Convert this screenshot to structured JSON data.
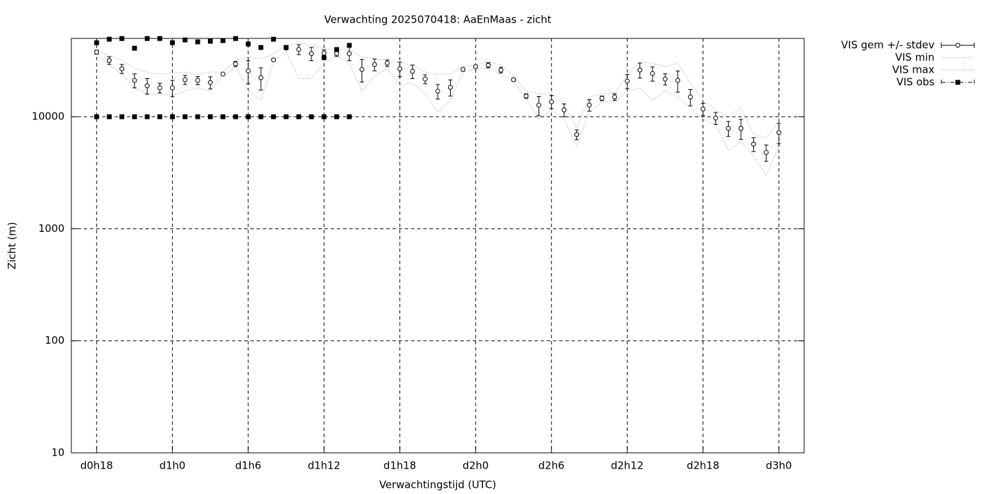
{
  "chart_data": {
    "type": "errorline",
    "title": "Verwachting 2025070418: AaEnMaas - zicht",
    "xlabel": "Verwachtingstijd (UTC)",
    "ylabel": "Zicht (m)",
    "log_y": true,
    "grid": true,
    "xlim": [
      16,
      74
    ],
    "xticks": [
      {
        "value": 18,
        "label": "d0h18"
      },
      {
        "value": 24,
        "label": "d1h0"
      },
      {
        "value": 30,
        "label": "d1h6"
      },
      {
        "value": 36,
        "label": "d1h12"
      },
      {
        "value": 42,
        "label": "d1h18"
      },
      {
        "value": 48,
        "label": "d2h0"
      },
      {
        "value": 54,
        "label": "d2h6"
      },
      {
        "value": 60,
        "label": "d2h12"
      },
      {
        "value": 66,
        "label": "d2h18"
      },
      {
        "value": 72,
        "label": "d3h0"
      }
    ],
    "ylim": [
      10,
      50000
    ],
    "yticks": [
      10,
      100,
      1000,
      10000
    ],
    "x": [
      18,
      19,
      20,
      21,
      22,
      23,
      24,
      25,
      26,
      27,
      28,
      29,
      30,
      31,
      32,
      33,
      34,
      35,
      36,
      37,
      38,
      39,
      40,
      41,
      42,
      43,
      44,
      45,
      46,
      47,
      48,
      49,
      50,
      51,
      52,
      53,
      54,
      55,
      56,
      57,
      58,
      59,
      60,
      61,
      62,
      63,
      64,
      65,
      66,
      67,
      68,
      69,
      70,
      71,
      72
    ],
    "series": [
      {
        "name": "VIS gem +/- stdev",
        "color": "#000000",
        "values": [
          37700,
          31800,
          26800,
          21100,
          18900,
          18100,
          18100,
          21400,
          21100,
          20200,
          24000,
          29600,
          25700,
          22300,
          32200,
          41000,
          39800,
          36600,
          37000,
          36600,
          36600,
          26400,
          29200,
          30100,
          26800,
          25400,
          21700,
          16900,
          18300,
          26400,
          28000,
          28800,
          26100,
          21400,
          15300,
          12700,
          13600,
          11500,
          6930,
          12700,
          14600,
          15000,
          20800,
          26100,
          24300,
          21700,
          21100,
          15000,
          11700,
          9730,
          7870,
          7870,
          5690,
          4800,
          7230
        ],
        "errors": [
          1500,
          2500,
          2500,
          3000,
          3000,
          1800,
          3000,
          2000,
          1800,
          2500,
          500,
          1500,
          6000,
          5000,
          800,
          1000,
          4000,
          5000,
          2500,
          2000,
          5000,
          6000,
          3500,
          2000,
          4000,
          3500,
          2000,
          2500,
          3000,
          800,
          500,
          1500,
          1500,
          700,
          700,
          2500,
          1800,
          1500,
          700,
          1500,
          700,
          1000,
          3000,
          4000,
          3500,
          2500,
          4500,
          2500,
          1500,
          1200,
          1200,
          1600,
          800,
          800,
          1500
        ]
      },
      {
        "name": "VIS min",
        "color": "#999999",
        "values": [
          36000,
          29000,
          24000,
          18000,
          16000,
          16000,
          15500,
          17000,
          18000,
          17000,
          23000,
          28000,
          17000,
          14000,
          31000,
          38000,
          22000,
          22000,
          30000,
          35000,
          30000,
          17000,
          23000,
          27000,
          19000,
          20000,
          16000,
          11000,
          14000,
          25000,
          27000,
          27000,
          24000,
          21000,
          14500,
          9500,
          11500,
          9500,
          5500,
          11000,
          13500,
          13500,
          17000,
          18000,
          14000,
          17000,
          15000,
          12000,
          9500,
          8500,
          5000,
          6000,
          4500,
          3000,
          5500
        ]
      },
      {
        "name": "VIS max",
        "color": "#999999",
        "values": [
          39000,
          35000,
          32000,
          27000,
          25000,
          24000,
          24500,
          25000,
          24000,
          25000,
          25000,
          32000,
          34000,
          33000,
          36000,
          44000,
          45000,
          44000,
          40000,
          40000,
          40000,
          34000,
          33000,
          32000,
          30000,
          29000,
          25000,
          24000,
          24000,
          28000,
          29000,
          31000,
          29000,
          23000,
          17000,
          16000,
          16000,
          13000,
          8000,
          15000,
          16000,
          16000,
          24000,
          31000,
          30000,
          28000,
          30000,
          20000,
          14000,
          11500,
          10000,
          12000,
          7000,
          6500,
          9000
        ]
      },
      {
        "name": "VIS obs",
        "color": "#000000",
        "x": [
          18,
          19,
          20,
          21,
          22,
          23,
          24,
          25,
          26,
          27,
          28,
          29,
          30,
          31,
          32,
          33,
          36,
          37,
          38,
          18,
          19,
          20,
          21,
          22,
          23,
          24,
          25,
          26,
          27,
          28,
          29,
          30,
          31,
          32,
          33,
          34,
          35,
          36,
          37,
          38
        ],
        "values": [
          45800,
          49200,
          49900,
          40900,
          49900,
          49900,
          45800,
          48500,
          46600,
          47200,
          47800,
          49900,
          44600,
          41500,
          49200,
          41500,
          33700,
          39800,
          43400,
          10000,
          10000,
          10000,
          10000,
          10000,
          10000,
          10000,
          10000,
          10000,
          10000,
          10000,
          10000,
          10000,
          10000,
          10000,
          10000,
          10000,
          10000,
          10000,
          10000,
          10000
        ]
      }
    ]
  }
}
